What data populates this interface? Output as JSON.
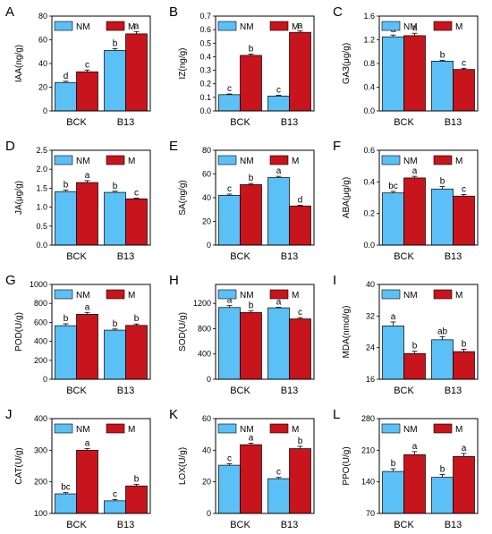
{
  "colors": {
    "NM": "#5bc0f5",
    "M": "#c8141c",
    "axis": "#000000"
  },
  "chart_data": [
    {
      "panel": "A",
      "type": "bar",
      "ylabel": "IAA(ng/g)",
      "categories": [
        "BCK",
        "B13"
      ],
      "series": [
        {
          "name": "NM",
          "values": [
            24,
            51
          ],
          "errors": [
            1,
            1.5
          ],
          "letters": [
            "d",
            "b"
          ]
        },
        {
          "name": "M",
          "values": [
            33,
            65
          ],
          "errors": [
            1.5,
            2
          ],
          "letters": [
            "c",
            "a"
          ]
        }
      ],
      "ylim": [
        0,
        80
      ],
      "yticks": [
        "0",
        "20",
        "40",
        "60",
        "80"
      ],
      "yticks_v": [
        0,
        20,
        40,
        60,
        80
      ],
      "legend": {
        "labels": [
          "NM",
          "M"
        ],
        "placement": "top"
      }
    },
    {
      "panel": "B",
      "type": "bar",
      "ylabel": "IZ(ng/g)",
      "categories": [
        "BCK",
        "B13"
      ],
      "series": [
        {
          "name": "NM",
          "values": [
            0.12,
            0.11
          ],
          "errors": [
            0.005,
            0.005
          ],
          "letters": [
            "c",
            "c"
          ]
        },
        {
          "name": "M",
          "values": [
            0.41,
            0.58
          ],
          "errors": [
            0.01,
            0.01
          ],
          "letters": [
            "b",
            "a"
          ]
        }
      ],
      "ylim": [
        0,
        0.7
      ],
      "yticks": [
        "0.0",
        "0.1",
        "0.2",
        "0.3",
        "0.4",
        "0.5",
        "0.6",
        "0.7"
      ],
      "yticks_v": [
        0,
        0.1,
        0.2,
        0.3,
        0.4,
        0.5,
        0.6,
        0.7
      ],
      "legend": {
        "labels": [
          "NM",
          "M"
        ],
        "placement": "top"
      }
    },
    {
      "panel": "C",
      "type": "bar",
      "ylabel": "GA3(μg/g)",
      "categories": [
        "BCK",
        "B13"
      ],
      "series": [
        {
          "name": "NM",
          "values": [
            1.25,
            0.84
          ],
          "errors": [
            0.03,
            0.015
          ],
          "letters": [
            "a",
            "b"
          ]
        },
        {
          "name": "M",
          "values": [
            1.27,
            0.7
          ],
          "errors": [
            0.04,
            0.02
          ],
          "letters": [
            "a",
            "c"
          ]
        }
      ],
      "ylim": [
        0,
        1.6
      ],
      "yticks": [
        "0.0",
        "0.4",
        "0.8",
        "1.2",
        "1.6"
      ],
      "yticks_v": [
        0,
        0.4,
        0.8,
        1.2,
        1.6
      ],
      "legend": {
        "labels": [
          "NM",
          "M"
        ],
        "placement": "top"
      }
    },
    {
      "panel": "D",
      "type": "bar",
      "ylabel": "JA(μg/g)",
      "categories": [
        "BCK",
        "B13"
      ],
      "series": [
        {
          "name": "NM",
          "values": [
            1.41,
            1.39
          ],
          "errors": [
            0.04,
            0.03
          ],
          "letters": [
            "b",
            "b"
          ]
        },
        {
          "name": "M",
          "values": [
            1.65,
            1.22
          ],
          "errors": [
            0.05,
            0.02
          ],
          "letters": [
            "a",
            "c"
          ]
        }
      ],
      "ylim": [
        0,
        2.5
      ],
      "yticks": [
        "0.0",
        "0.5",
        "1.0",
        "1.5",
        "2.0",
        "2.5"
      ],
      "yticks_v": [
        0,
        0.5,
        1,
        1.5,
        2,
        2.5
      ],
      "legend": {
        "labels": [
          "NM",
          "M"
        ],
        "placement": "top"
      }
    },
    {
      "panel": "E",
      "type": "bar",
      "ylabel": "SA(ng/g)",
      "categories": [
        "BCK",
        "B13"
      ],
      "series": [
        {
          "name": "NM",
          "values": [
            42,
            57
          ],
          "errors": [
            1,
            1
          ],
          "letters": [
            "c",
            "a"
          ]
        },
        {
          "name": "M",
          "values": [
            51,
            33
          ],
          "errors": [
            1,
            0.5
          ],
          "letters": [
            "b",
            "d"
          ]
        }
      ],
      "ylim": [
        0,
        80
      ],
      "yticks": [
        "0",
        "20",
        "40",
        "60",
        "80"
      ],
      "yticks_v": [
        0,
        20,
        40,
        60,
        80
      ],
      "legend": {
        "labels": [
          "NM",
          "M"
        ],
        "placement": "top"
      }
    },
    {
      "panel": "F",
      "type": "bar",
      "ylabel": "ABA(μg/g)",
      "categories": [
        "BCK",
        "B13"
      ],
      "series": [
        {
          "name": "NM",
          "values": [
            0.33,
            0.355
          ],
          "errors": [
            0.01,
            0.015
          ],
          "letters": [
            "bc",
            "b"
          ]
        },
        {
          "name": "M",
          "values": [
            0.425,
            0.31
          ],
          "errors": [
            0.01,
            0.01
          ],
          "letters": [
            "a",
            "c"
          ]
        }
      ],
      "ylim": [
        0,
        0.6
      ],
      "yticks": [
        "0.0",
        "0.2",
        "0.4",
        "0.6"
      ],
      "yticks_v": [
        0,
        0.2,
        0.4,
        0.6
      ],
      "legend": {
        "labels": [
          "NM",
          "M"
        ],
        "placement": "top"
      }
    },
    {
      "panel": "G",
      "type": "bar",
      "ylabel": "POD(U/g)",
      "categories": [
        "BCK",
        "B13"
      ],
      "series": [
        {
          "name": "NM",
          "values": [
            565,
            518
          ],
          "errors": [
            20,
            12
          ],
          "letters": [
            "b",
            "b"
          ]
        },
        {
          "name": "M",
          "values": [
            685,
            568
          ],
          "errors": [
            20,
            15
          ],
          "letters": [
            "a",
            "b"
          ]
        }
      ],
      "ylim": [
        0,
        1000
      ],
      "yticks": [
        "0",
        "200",
        "400",
        "600",
        "800",
        "1000"
      ],
      "yticks_v": [
        0,
        200,
        400,
        600,
        800,
        1000
      ],
      "legend": {
        "labels": [
          "NM",
          "M"
        ],
        "placement": "top"
      }
    },
    {
      "panel": "H",
      "type": "bar",
      "ylabel": "SOD(U/g)",
      "categories": [
        "BCK",
        "B13"
      ],
      "series": [
        {
          "name": "NM",
          "values": [
            1135,
            1130
          ],
          "errors": [
            30,
            10
          ],
          "letters": [
            "a",
            "a"
          ]
        },
        {
          "name": "M",
          "values": [
            1055,
            955
          ],
          "errors": [
            25,
            20
          ],
          "letters": [
            "b",
            "c"
          ]
        }
      ],
      "ylim": [
        0,
        1500
      ],
      "yticks": [
        "0",
        "400",
        "800",
        "1200"
      ],
      "yticks_v": [
        0,
        400,
        800,
        1200
      ],
      "legend": {
        "labels": [
          "NM",
          "M"
        ],
        "placement": "top"
      }
    },
    {
      "panel": "I",
      "type": "bar",
      "ylabel": "MDA(nmol/g)",
      "categories": [
        "BCK",
        "B13"
      ],
      "series": [
        {
          "name": "NM",
          "values": [
            29.5,
            26
          ],
          "errors": [
            1,
            0.8
          ],
          "letters": [
            "a",
            "ab"
          ]
        },
        {
          "name": "M",
          "values": [
            22.5,
            23
          ],
          "errors": [
            0.6,
            0.6
          ],
          "letters": [
            "b",
            "b"
          ]
        }
      ],
      "ylim": [
        16,
        40
      ],
      "yticks": [
        "16",
        "24",
        "32",
        "40"
      ],
      "yticks_v": [
        16,
        24,
        32,
        40
      ],
      "legend": {
        "labels": [
          "NM",
          "M"
        ],
        "placement": "top"
      }
    },
    {
      "panel": "J",
      "type": "bar",
      "ylabel": "CAT(U/g)",
      "categories": [
        "BCK",
        "B13"
      ],
      "series": [
        {
          "name": "NM",
          "values": [
            162,
            140
          ],
          "errors": [
            4,
            4
          ],
          "letters": [
            "bc",
            "c"
          ]
        },
        {
          "name": "M",
          "values": [
            300,
            187
          ],
          "errors": [
            5,
            5
          ],
          "letters": [
            "a",
            "b"
          ]
        }
      ],
      "ylim": [
        100,
        400
      ],
      "yticks": [
        "100",
        "200",
        "300",
        "400"
      ],
      "yticks_v": [
        100,
        200,
        300,
        400
      ],
      "legend": {
        "labels": [
          "NM",
          "M"
        ],
        "placement": "top"
      }
    },
    {
      "panel": "K",
      "type": "bar",
      "ylabel": "LOX(U/g)",
      "categories": [
        "BCK",
        "B13"
      ],
      "series": [
        {
          "name": "NM",
          "values": [
            30.5,
            22
          ],
          "errors": [
            1,
            0.8
          ],
          "letters": [
            "c",
            "c"
          ]
        },
        {
          "name": "M",
          "values": [
            43.5,
            41
          ],
          "errors": [
            1,
            1.5
          ],
          "letters": [
            "a",
            "b"
          ]
        }
      ],
      "ylim": [
        0,
        60
      ],
      "yticks": [
        "0",
        "20",
        "40",
        "60"
      ],
      "yticks_v": [
        0,
        20,
        40,
        60
      ],
      "legend": {
        "labels": [
          "NM",
          "M"
        ],
        "placement": "top"
      }
    },
    {
      "panel": "L",
      "type": "bar",
      "ylabel": "PPO(U/g)",
      "categories": [
        "BCK",
        "B13"
      ],
      "series": [
        {
          "name": "NM",
          "values": [
            163,
            150
          ],
          "errors": [
            6,
            6
          ],
          "letters": [
            "b",
            "b"
          ]
        },
        {
          "name": "M",
          "values": [
            200,
            196
          ],
          "errors": [
            7,
            7
          ],
          "letters": [
            "a",
            "a"
          ]
        }
      ],
      "ylim": [
        70,
        280
      ],
      "yticks": [
        "70",
        "140",
        "210",
        "280"
      ],
      "yticks_v": [
        70,
        140,
        210,
        280
      ],
      "legend": {
        "labels": [
          "NM",
          "M"
        ],
        "placement": "top"
      }
    }
  ]
}
